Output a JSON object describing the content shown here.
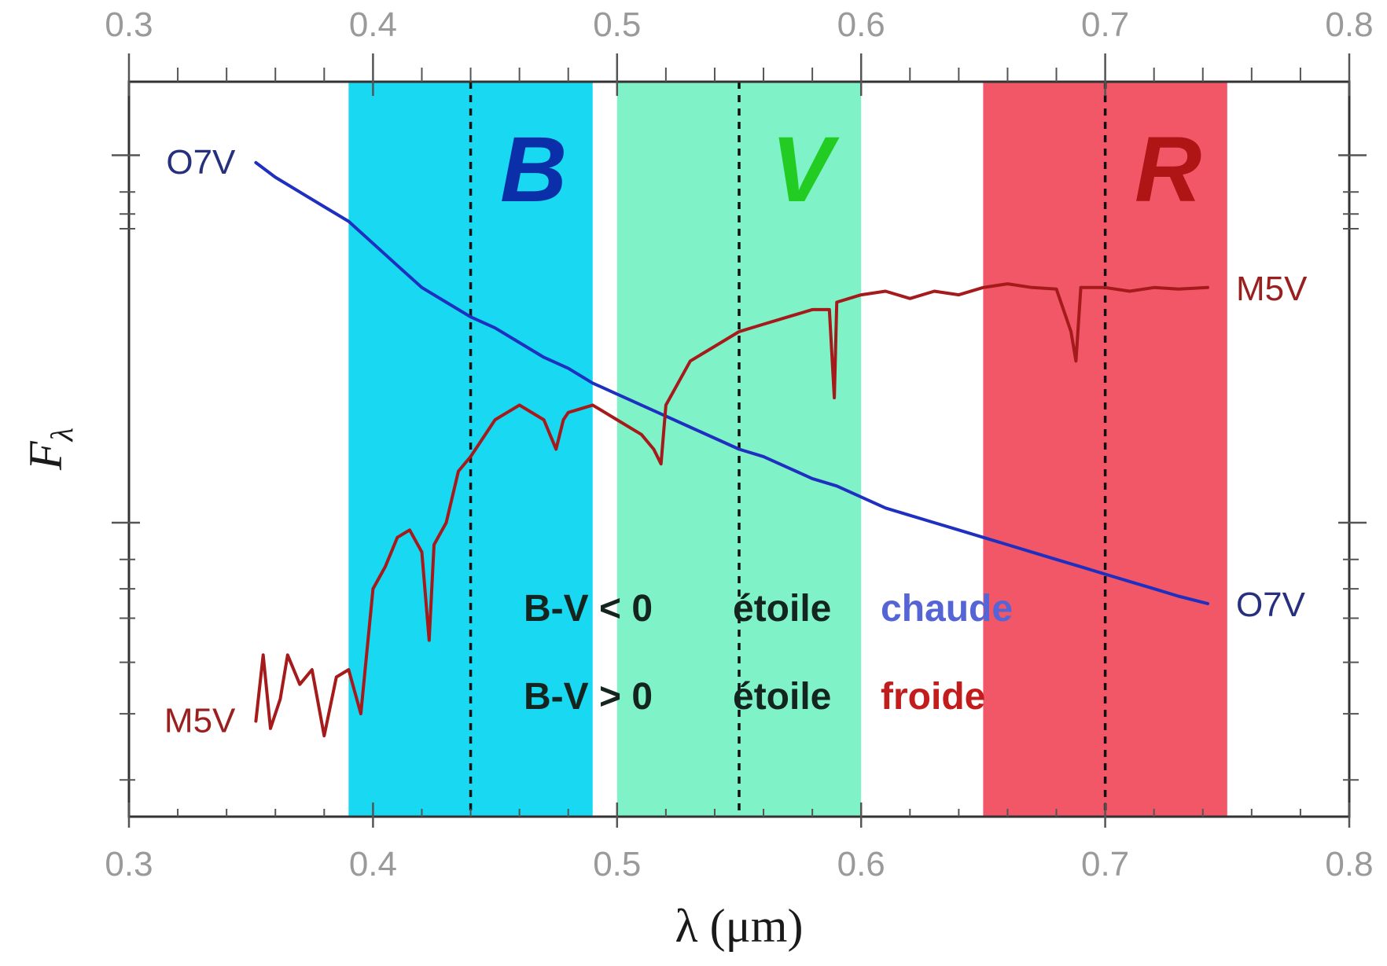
{
  "chart_data": {
    "type": "line",
    "title": "",
    "xlabel": "λ (μm)",
    "ylabel": "Fλ",
    "ylabel_main": "F",
    "ylabel_sub": "λ",
    "xlim": [
      0.3,
      0.8
    ],
    "ylim": [
      0,
      1
    ],
    "x_ticks": [
      "0.3",
      "0.4",
      "0.5",
      "0.6",
      "0.7",
      "0.8"
    ],
    "x_tick_values": [
      0.3,
      0.4,
      0.5,
      0.6,
      0.7,
      0.8
    ],
    "y_ticks_labeled": false,
    "grid": false,
    "bands": [
      {
        "name": "B",
        "from": 0.39,
        "to": 0.49,
        "center": 0.44,
        "color": "#19d8f2",
        "label_color": "#0a2fa8"
      },
      {
        "name": "V",
        "from": 0.5,
        "to": 0.6,
        "center": 0.55,
        "color": "#7ff2c8",
        "label_color": "#22cc22"
      },
      {
        "name": "R",
        "from": 0.65,
        "to": 0.75,
        "center": 0.7,
        "color": "#f25768",
        "label_color": "#b01515"
      }
    ],
    "series": [
      {
        "name": "O7V",
        "color": "#1f2fbf",
        "label_color": "#27307d",
        "x": [
          0.352,
          0.36,
          0.37,
          0.38,
          0.39,
          0.4,
          0.41,
          0.42,
          0.43,
          0.44,
          0.45,
          0.46,
          0.47,
          0.48,
          0.49,
          0.5,
          0.51,
          0.52,
          0.53,
          0.54,
          0.55,
          0.56,
          0.57,
          0.58,
          0.59,
          0.6,
          0.61,
          0.62,
          0.63,
          0.64,
          0.65,
          0.66,
          0.67,
          0.68,
          0.69,
          0.7,
          0.71,
          0.72,
          0.73,
          0.742
        ],
        "y": [
          0.89,
          0.87,
          0.85,
          0.83,
          0.81,
          0.78,
          0.75,
          0.72,
          0.7,
          0.68,
          0.665,
          0.645,
          0.625,
          0.61,
          0.59,
          0.575,
          0.56,
          0.545,
          0.53,
          0.515,
          0.5,
          0.49,
          0.475,
          0.46,
          0.45,
          0.435,
          0.42,
          0.41,
          0.4,
          0.39,
          0.38,
          0.37,
          0.36,
          0.35,
          0.34,
          0.33,
          0.32,
          0.31,
          0.3,
          0.29
        ]
      },
      {
        "name": "M5V",
        "color": "#a51a1a",
        "label_color": "#9a1f1f",
        "x": [
          0.352,
          0.355,
          0.358,
          0.362,
          0.365,
          0.37,
          0.375,
          0.38,
          0.385,
          0.39,
          0.395,
          0.4,
          0.405,
          0.41,
          0.415,
          0.42,
          0.423,
          0.425,
          0.43,
          0.435,
          0.44,
          0.45,
          0.46,
          0.47,
          0.475,
          0.478,
          0.48,
          0.49,
          0.5,
          0.51,
          0.515,
          0.518,
          0.52,
          0.53,
          0.54,
          0.55,
          0.56,
          0.57,
          0.58,
          0.587,
          0.589,
          0.59,
          0.6,
          0.61,
          0.62,
          0.63,
          0.64,
          0.65,
          0.66,
          0.67,
          0.68,
          0.686,
          0.688,
          0.69,
          0.7,
          0.71,
          0.72,
          0.73,
          0.742
        ],
        "y": [
          0.13,
          0.22,
          0.12,
          0.16,
          0.22,
          0.18,
          0.2,
          0.11,
          0.19,
          0.2,
          0.14,
          0.31,
          0.34,
          0.38,
          0.39,
          0.36,
          0.24,
          0.37,
          0.4,
          0.47,
          0.49,
          0.54,
          0.56,
          0.54,
          0.5,
          0.54,
          0.55,
          0.56,
          0.54,
          0.52,
          0.5,
          0.48,
          0.56,
          0.62,
          0.64,
          0.66,
          0.67,
          0.68,
          0.69,
          0.69,
          0.57,
          0.7,
          0.71,
          0.715,
          0.705,
          0.715,
          0.71,
          0.72,
          0.725,
          0.72,
          0.718,
          0.66,
          0.62,
          0.72,
          0.72,
          0.715,
          0.72,
          0.718,
          0.72
        ]
      }
    ],
    "reference_lines": [
      0.44,
      0.55,
      0.7
    ],
    "annotations": [
      {
        "prefix": "B-V < 0",
        "word": "étoile",
        "adjective": "chaude",
        "adjective_color": "#5565d6"
      },
      {
        "prefix": "B-V > 0",
        "word": "étoile",
        "adjective": "froide",
        "adjective_color": "#c21c1c"
      }
    ]
  }
}
